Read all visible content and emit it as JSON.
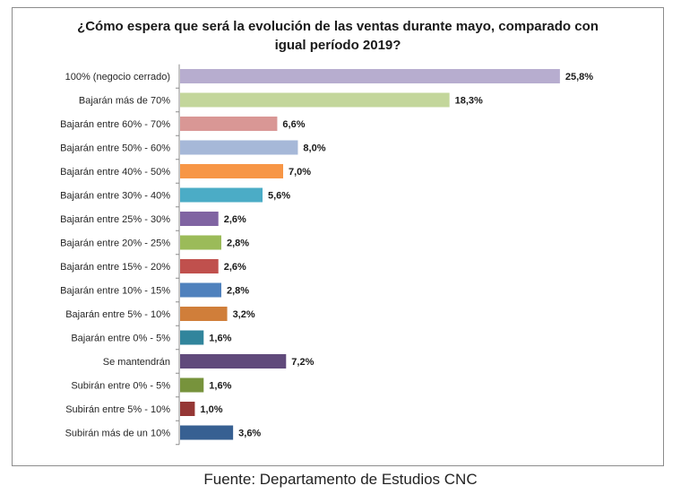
{
  "chart_data": {
    "type": "bar",
    "orientation": "horizontal",
    "title_lines": [
      "¿Cómo espera que será la evolución de las ventas durante mayo, comparado con",
      "igual período 2019?"
    ],
    "xlim": [
      0,
      28
    ],
    "grid": false,
    "categories": [
      "100% (negocio cerrado)",
      "Bajarán más de 70%",
      "Bajarán entre 60% - 70%",
      "Bajarán entre 50% - 60%",
      "Bajarán entre 40% - 50%",
      "Bajarán entre 30% - 40%",
      "Bajarán entre 25% - 30%",
      "Bajarán entre 20% - 25%",
      "Bajarán entre 15% - 20%",
      "Bajarán entre 10% - 15%",
      "Bajarán entre 5% - 10%",
      "Bajarán entre 0% - 5%",
      "Se mantendrán",
      "Subirán entre 0% - 5%",
      "Subirán entre 5% - 10%",
      "Subirán más de un 10%"
    ],
    "values": [
      25.8,
      18.3,
      6.6,
      8.0,
      7.0,
      5.6,
      2.6,
      2.8,
      2.6,
      2.8,
      3.2,
      1.6,
      7.2,
      1.6,
      1.0,
      3.6
    ],
    "value_labels": [
      "25,8%",
      "18,3%",
      "6,6%",
      "8,0%",
      "7,0%",
      "5,6%",
      "2,6%",
      "2,8%",
      "2,6%",
      "2,8%",
      "3,2%",
      "1,6%",
      "7,2%",
      "1,6%",
      "1,0%",
      "3,6%"
    ],
    "colors": [
      "#b7adcf",
      "#c3d69b",
      "#d99795",
      "#a6b8d8",
      "#f79646",
      "#4bacc6",
      "#8064a2",
      "#9bbb59",
      "#c0504d",
      "#4f81bd",
      "#d07e3a",
      "#31859c",
      "#604a7b",
      "#77933c",
      "#953735",
      "#376092"
    ]
  },
  "source_text": "Fuente: Departamento de Estudios CNC"
}
